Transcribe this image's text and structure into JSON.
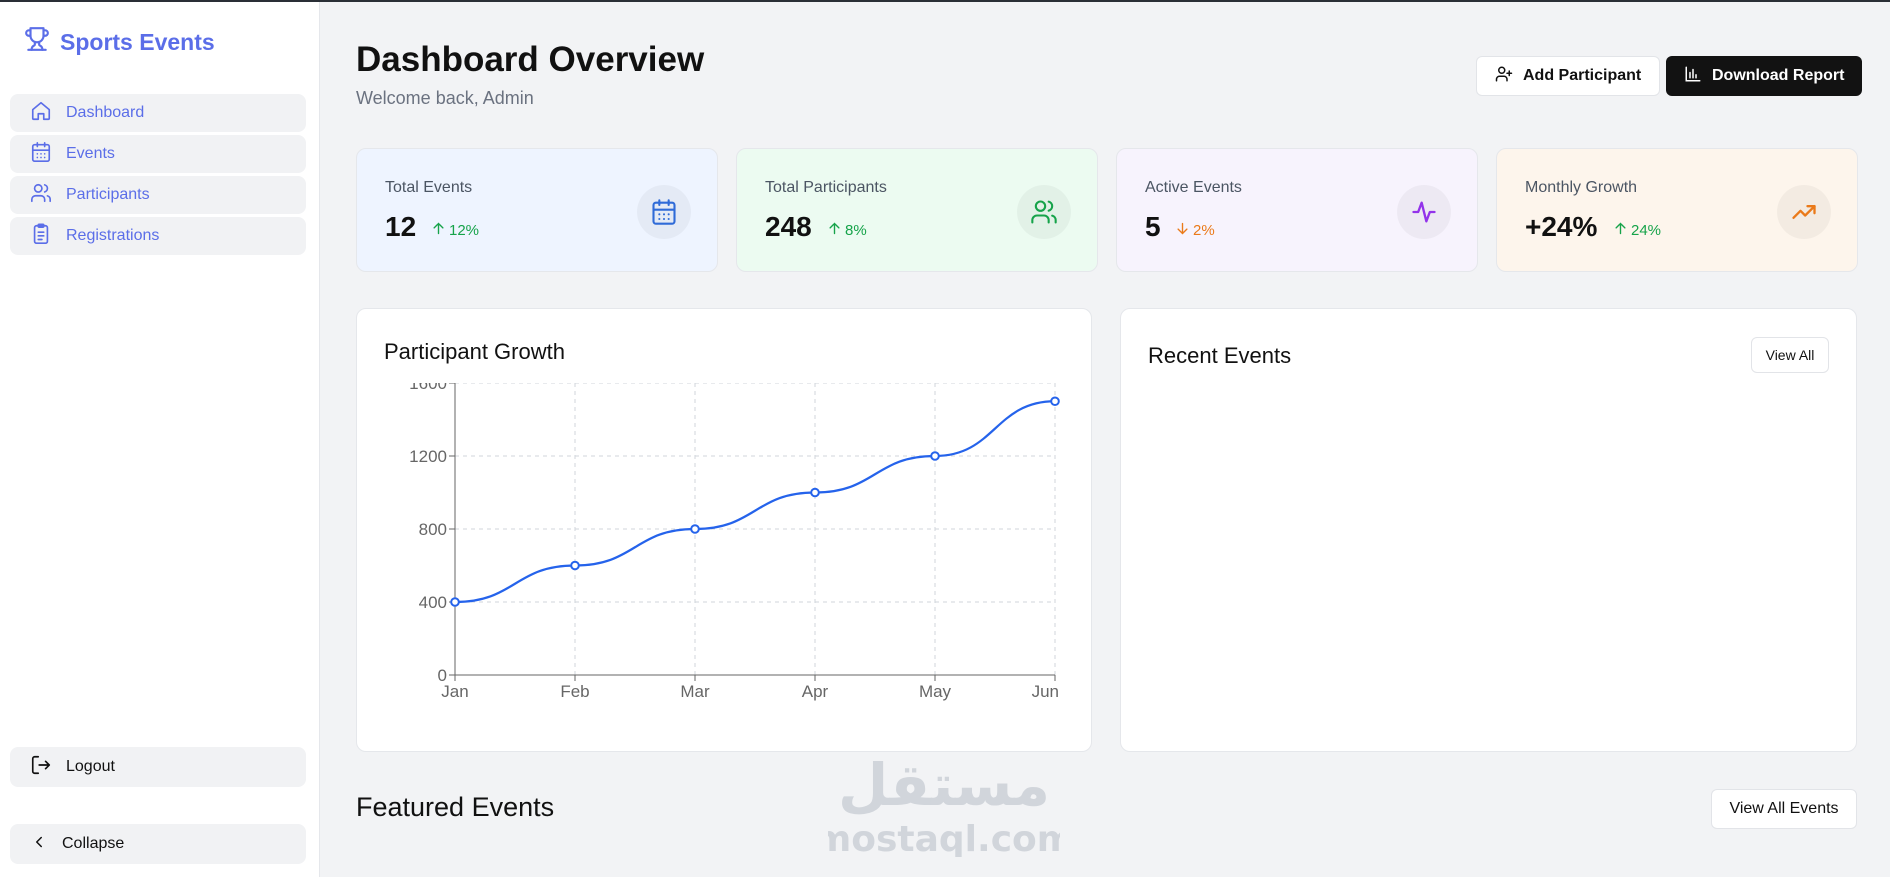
{
  "app": {
    "brand": "Sports Events",
    "brand_icon": "trophy-icon",
    "accent": "#5b6ee8"
  },
  "sidebar": {
    "items": [
      {
        "label": "Dashboard",
        "icon": "home-icon"
      },
      {
        "label": "Events",
        "icon": "calendar-icon"
      },
      {
        "label": "Participants",
        "icon": "users-icon"
      },
      {
        "label": "Registrations",
        "icon": "clipboard-icon"
      }
    ],
    "logout_label": "Logout",
    "collapse_label": "Collapse"
  },
  "header": {
    "title": "Dashboard Overview",
    "subtitle": "Welcome back, Admin",
    "add_participant_label": "Add Participant",
    "download_report_label": "Download Report"
  },
  "stats": [
    {
      "label": "Total Events",
      "value": "12",
      "trend": "12%",
      "direction": "up",
      "icon": "calendar-icon",
      "bg": "#eef4ff",
      "icon_color": "#2f6bd8"
    },
    {
      "label": "Total Participants",
      "value": "248",
      "trend": "8%",
      "direction": "up",
      "icon": "users-icon",
      "bg": "#ecfbf1",
      "icon_color": "#16a34a"
    },
    {
      "label": "Active Events",
      "value": "5",
      "trend": "2%",
      "direction": "down",
      "icon": "activity-icon",
      "bg": "#f7f3fd",
      "icon_color": "#9333ea"
    },
    {
      "label": "Monthly Growth",
      "value": "+24%",
      "trend": "24%",
      "direction": "up",
      "icon": "trending-up-icon",
      "bg": "#fdf5ec",
      "icon_color": "#ea7a1a"
    }
  ],
  "growth_card": {
    "title": "Participant Growth"
  },
  "recent_events": {
    "title": "Recent Events",
    "view_all_label": "View All"
  },
  "featured": {
    "title": "Featured Events",
    "view_all_label": "View All Events"
  },
  "watermark": {
    "line1": "مستقل",
    "line2": "mostaql.com"
  },
  "chart_data": {
    "type": "line",
    "categories": [
      "Jan",
      "Feb",
      "Mar",
      "Apr",
      "May",
      "Jun"
    ],
    "series": [
      {
        "values": [
          400,
          600,
          800,
          1000,
          1200,
          1500
        ],
        "color": "#2563eb"
      }
    ],
    "yticks": [
      0,
      400,
      800,
      1200,
      1600
    ],
    "ylim": [
      0,
      1600
    ],
    "grid": true,
    "title": "Participant Growth",
    "xlabel": "",
    "ylabel": ""
  }
}
